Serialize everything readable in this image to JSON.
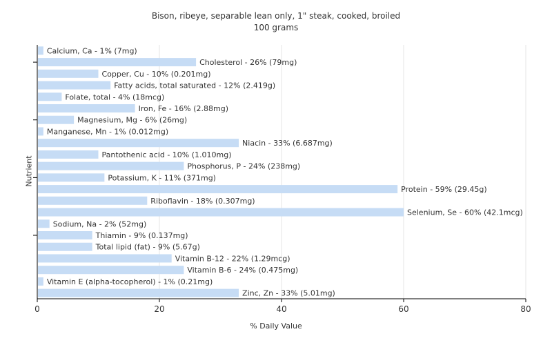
{
  "chart_data": {
    "type": "bar",
    "orientation": "horizontal",
    "title": "Bison, ribeye, separable lean only, 1\" steak, cooked, broiled",
    "subtitle": "100 grams",
    "xlabel": "% Daily Value",
    "ylabel": "Nutrient",
    "xlim": [
      0,
      80
    ],
    "xticks": [
      0,
      20,
      40,
      60,
      80
    ],
    "grid": true,
    "bar_color": "#c6dcf5",
    "categories": [
      "Calcium, Ca",
      "Cholesterol",
      "Copper, Cu",
      "Fatty acids, total saturated",
      "Folate, total",
      "Iron, Fe",
      "Magnesium, Mg",
      "Manganese, Mn",
      "Niacin",
      "Pantothenic acid",
      "Phosphorus, P",
      "Potassium, K",
      "Protein",
      "Riboflavin",
      "Selenium, Se",
      "Sodium, Na",
      "Thiamin",
      "Total lipid (fat)",
      "Vitamin B-12",
      "Vitamin B-6",
      "Vitamin E (alpha-tocopherol)",
      "Zinc, Zn"
    ],
    "values": [
      1,
      26,
      10,
      12,
      4,
      16,
      6,
      1,
      33,
      10,
      24,
      11,
      59,
      18,
      60,
      2,
      9,
      9,
      22,
      24,
      1,
      33
    ],
    "labels": [
      "Calcium, Ca - 1% (7mg)",
      "Cholesterol - 26% (79mg)",
      "Copper, Cu - 10% (0.201mg)",
      "Fatty acids, total saturated - 12% (2.419g)",
      "Folate, total - 4% (18mcg)",
      "Iron, Fe - 16% (2.88mg)",
      "Magnesium, Mg - 6% (26mg)",
      "Manganese, Mn - 1% (0.012mg)",
      "Niacin - 33% (6.687mg)",
      "Pantothenic acid - 10% (1.010mg)",
      "Phosphorus, P - 24% (238mg)",
      "Potassium, K - 11% (371mg)",
      "Protein - 59% (29.45g)",
      "Riboflavin - 18% (0.307mg)",
      "Selenium, Se - 60% (42.1mcg)",
      "Sodium, Na - 2% (52mg)",
      "Thiamin - 9% (0.137mg)",
      "Total lipid (fat) - 9% (5.67g)",
      "Vitamin B-12 - 22% (1.29mcg)",
      "Vitamin B-6 - 24% (0.475mg)",
      "Vitamin E (alpha-tocopherol) - 1% (0.21mg)",
      "Zinc, Zn - 33% (5.01mg)"
    ]
  }
}
